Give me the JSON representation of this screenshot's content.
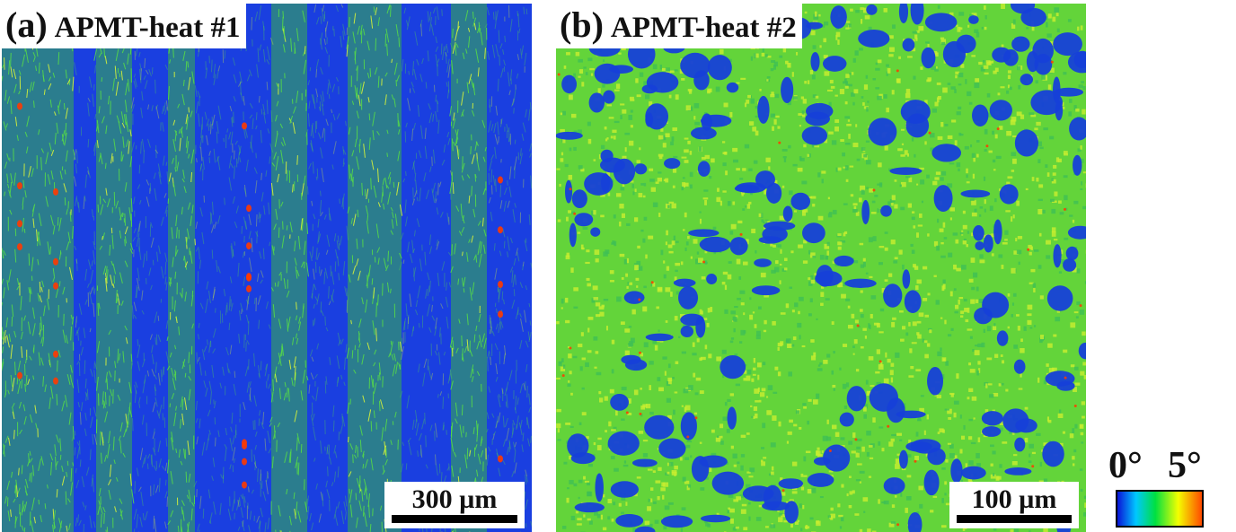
{
  "panels": [
    {
      "letter": "(a)",
      "title": "APMT-heat #1",
      "scalebar": "300 µm"
    },
    {
      "letter": "(b)",
      "title": "APMT-heat #2",
      "scalebar": "100 µm"
    }
  ],
  "legend": {
    "min": "0°",
    "max": "5°"
  },
  "colors": {
    "low": "#0a14d8",
    "mid": "#00e040",
    "high_yellow": "#f4ff00",
    "max_red": "#ff3000",
    "panel_a_base": "#1a3fe0",
    "panel_b_base": "#63d43a"
  }
}
